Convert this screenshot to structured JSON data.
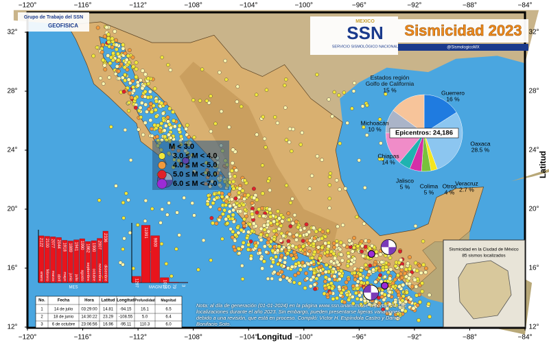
{
  "header": {
    "title": "Sismicidad 2023",
    "agency": "SSN",
    "country": "MEXICO",
    "agency_name": "SERVICIO SISMOLÓGICO NACIONAL",
    "social": "@SismologicoMX",
    "group": "Grupo de Trabajo del SSN",
    "institute": "GEOFISICA"
  },
  "axes": {
    "x_title": "Longitud",
    "y_title": "Latitud",
    "xticks": [
      {
        "value": -120,
        "label": "−120°"
      },
      {
        "value": -116,
        "label": "−116°"
      },
      {
        "value": -112,
        "label": "−112°"
      },
      {
        "value": -108,
        "label": "−108°"
      },
      {
        "value": -104,
        "label": "−104°"
      },
      {
        "value": -100,
        "label": "−100°"
      },
      {
        "value": -96,
        "label": "−96°"
      },
      {
        "value": -92,
        "label": "−92°"
      },
      {
        "value": -88,
        "label": "−88°"
      },
      {
        "value": -84,
        "label": "−84°"
      }
    ],
    "yticks": [
      {
        "value": 12,
        "label": "12°"
      },
      {
        "value": 16,
        "label": "16°"
      },
      {
        "value": 20,
        "label": "20°"
      },
      {
        "value": 24,
        "label": "24°"
      },
      {
        "value": 28,
        "label": "28°"
      },
      {
        "value": 32,
        "label": "32°"
      }
    ]
  },
  "legend": [
    {
      "label": "M < 3.0",
      "color": "#fff8b0"
    },
    {
      "label": "3.0 ≤ M < 4.0",
      "color": "#f2e83a"
    },
    {
      "label": "4.0 ≤ M < 5.0",
      "color": "#f39a3c"
    },
    {
      "label": "5.0 ≤ M < 6.0",
      "color": "#e0202a"
    },
    {
      "label": "6.0 ≤ M < 7.0",
      "color": "#9b2bd6"
    }
  ],
  "pie": {
    "title": "Epicentros: 24,186",
    "slices": [
      {
        "name": "Guerrero",
        "value": 16,
        "label": "16 %",
        "color": "#1f7be0"
      },
      {
        "name": "Oaxaca",
        "value": 28.5,
        "label": "28.5 %",
        "color": "#8cc6f0"
      },
      {
        "name": "Veracruz",
        "value": 2.7,
        "label": "2.7 %",
        "color": "#f5e51e"
      },
      {
        "name": "Otros",
        "value": 4,
        "label": "4 %",
        "color": "#78c23c"
      },
      {
        "name": "Colima",
        "value": 5,
        "label": "5 %",
        "color": "#d42fa8"
      },
      {
        "name": "Jalisco",
        "value": 5,
        "label": "5 %",
        "color": "#1fb3b0"
      },
      {
        "name": "Chiapas",
        "value": 14,
        "label": "14 %",
        "color": "#f08cc8"
      },
      {
        "name": "Michoacán",
        "value": 10,
        "label": "10 %",
        "color": "#aab4c8"
      },
      {
        "name": "Estados región Golfo de California",
        "value": 15,
        "label": "15 %",
        "color": "#f7c49a"
      }
    ]
  },
  "monthly": {
    "x_title": "MES",
    "ylim": [
      0,
      2400
    ],
    "categories": [
      "enero",
      "febrero",
      "marzo",
      "abril",
      "mayo",
      "junio",
      "julio",
      "agosto",
      "septiembre",
      "octubre",
      "noviembre",
      "diciembre"
    ],
    "values": [
      2122,
      2100,
      2077,
      2044,
      1918,
      1889,
      1941,
      1990,
      1862,
      1900,
      2007,
      2336
    ]
  },
  "magnitude": {
    "x_title": "MAGNITUD",
    "ylim": [
      0,
      12500
    ],
    "values": [
      1297,
      11991,
      9800,
      1016,
      79,
      3
    ]
  },
  "table": {
    "headers": [
      "No.",
      "Fecha",
      "Hora",
      "Latitud",
      "Longitud",
      "Profundidad",
      "Magnitud"
    ],
    "rows": [
      [
        "1",
        "14 de julio",
        "03:29:00",
        "14.81",
        "-94.15",
        "16.1",
        "6.5"
      ],
      [
        "2",
        "18 de junio",
        "14:30:22",
        "23.29",
        "-108.55",
        "5.0",
        "6.4"
      ],
      [
        "3",
        "6 de octubre",
        "23:06:56",
        "16.96",
        "-95.11",
        "110.3",
        "6.0"
      ]
    ]
  },
  "inset": {
    "title": "Sismicidad en la Ciudad de México",
    "subtitle": "85 sismos localizados"
  },
  "note": "Nota: al día de generación (01-01-2024) en la página www.ssn.unam.mx se reportan 24,186 localizaciones durante el año 2023. Sin embargo, pueden presentarse ligeras variaciones debido a una revisión, que está en proceso. Compiló: Víctor H. Espíndola Castro y Daniel Bonifacio Soto."
}
